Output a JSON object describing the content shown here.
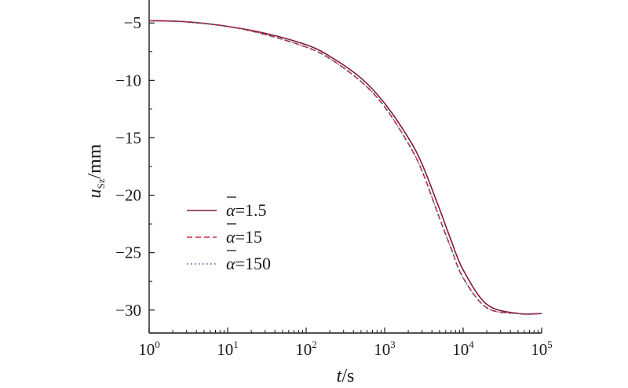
{
  "chart_data": {
    "type": "line",
    "xlabel": {
      "var": "t",
      "unit": "/s"
    },
    "ylabel": {
      "var": "u",
      "sub": "Sz",
      "unit": "/mm"
    },
    "xscale": "log",
    "xlim": [
      1,
      100000
    ],
    "ylim": [
      -32,
      -3
    ],
    "grid": false,
    "legend_position": "center-left",
    "x_ticks": [
      {
        "base": "10",
        "exp": "0"
      },
      {
        "base": "10",
        "exp": "1"
      },
      {
        "base": "10",
        "exp": "2"
      },
      {
        "base": "10",
        "exp": "3"
      },
      {
        "base": "10",
        "exp": "4"
      },
      {
        "base": "10",
        "exp": "5"
      }
    ],
    "y_ticks": [
      "−5",
      "−10",
      "−15",
      "−20",
      "−25",
      "−30"
    ],
    "y_tick_values": [
      -5,
      -10,
      -15,
      -20,
      -25,
      -30
    ],
    "x": [
      1,
      3,
      10,
      30,
      100,
      200,
      500,
      1000,
      2000,
      3000,
      5000,
      7000,
      10000,
      20000,
      50000,
      100000
    ],
    "series": [
      {
        "name": "α=1.5",
        "name_symbol": "α",
        "name_value": "=1.5",
        "color": "#7a1b3a",
        "dash": "solid",
        "values": [
          -4.8,
          -4.9,
          -5.3,
          -5.9,
          -6.9,
          -7.9,
          -9.8,
          -12.0,
          -15.0,
          -17.3,
          -21.2,
          -23.9,
          -26.5,
          -29.5,
          -30.3,
          -30.3
        ]
      },
      {
        "name": "α=15",
        "name_symbol": "α",
        "name_value": "=15",
        "color": "#d62c3a",
        "dash": "dashed",
        "values": [
          -4.8,
          -4.9,
          -5.3,
          -6.0,
          -7.1,
          -8.1,
          -10.1,
          -12.3,
          -15.5,
          -17.9,
          -22.0,
          -24.6,
          -27.2,
          -29.8,
          -30.3,
          -30.3
        ]
      },
      {
        "name": "α=150",
        "name_symbol": "α",
        "name_value": "=150",
        "color": "#3b4b8c",
        "dash": "dotted",
        "values": [
          -4.8,
          -4.9,
          -5.3,
          -6.0,
          -7.1,
          -8.1,
          -10.1,
          -12.3,
          -15.5,
          -17.9,
          -22.0,
          -24.6,
          -27.2,
          -29.8,
          -30.3,
          -30.3
        ]
      }
    ]
  }
}
